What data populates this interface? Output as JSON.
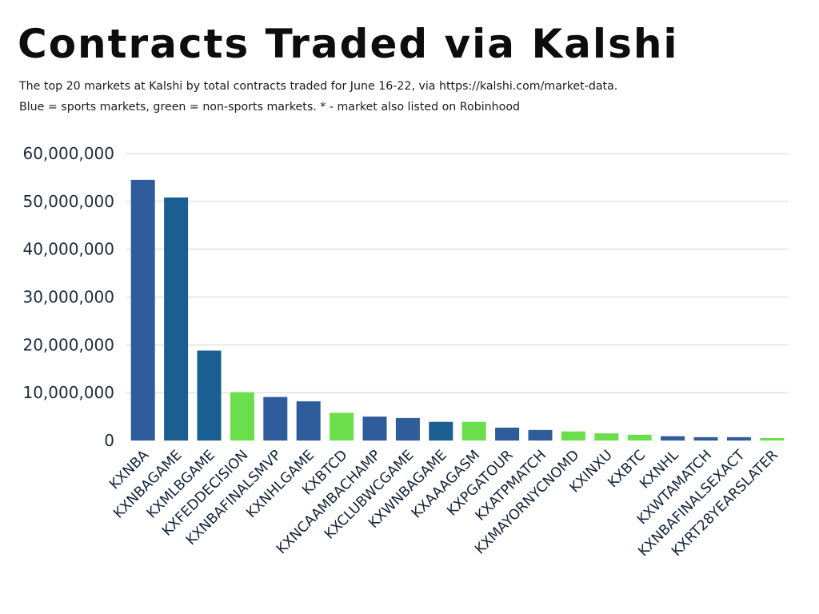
{
  "title": "Contracts Traded via Kalshi",
  "subtitle_lines": [
    "The top 20 markets at Kalshi by total contracts traded for June 16-22, via https://kalshi.com/market-data.",
    "Blue = sports markets, green = non-sports markets. * - market also listed on Robinhood"
  ],
  "colors": {
    "sports": "#2f5c9a",
    "sports_robinhood": "#1b5e91",
    "non_sports": "#6ade4b",
    "grid": "#d4d4d4"
  },
  "chart_data": {
    "type": "bar",
    "title": "Contracts Traded via Kalshi",
    "xlabel": "",
    "ylabel": "",
    "ylim": [
      0,
      60000000
    ],
    "yticks": [
      0,
      10000000,
      20000000,
      30000000,
      40000000,
      50000000,
      60000000
    ],
    "ytick_labels": [
      "0",
      "10,000,000",
      "20,000,000",
      "30,000,000",
      "40,000,000",
      "50,000,000",
      "60,000,000"
    ],
    "grid": true,
    "legend": "none",
    "categories": [
      "KXNBA",
      "KXNBAGAME",
      "KXMLBGAME",
      "KXFEDDECISION",
      "KXNBAFINALSMVP",
      "KXNHLGAME",
      "KXBTCD",
      "KXNCAAMBACHAMP",
      "KXCLUBWCGAME",
      "KXWNBAGAME",
      "KXAAAGASM",
      "KXPGATOUR",
      "KXATPMATCH",
      "KXMAYORNYCNOMD",
      "KXINXU",
      "KXBTC",
      "KXNHL",
      "KXWTAMATCH",
      "KXNBAFINALSEXACT",
      "KXRT28YEARSLATER"
    ],
    "values": [
      54500000,
      50800000,
      18800000,
      10100000,
      9100000,
      8200000,
      5800000,
      5000000,
      4700000,
      3900000,
      3900000,
      2700000,
      2200000,
      1900000,
      1500000,
      1200000,
      900000,
      700000,
      700000,
      500000
    ],
    "bar_group": [
      "sports",
      "sports_robinhood",
      "sports_robinhood",
      "non_sports",
      "sports",
      "sports",
      "non_sports",
      "sports",
      "sports",
      "sports_robinhood",
      "non_sports",
      "sports",
      "sports",
      "non_sports",
      "non_sports",
      "non_sports",
      "sports",
      "sports",
      "sports",
      "non_sports"
    ]
  }
}
